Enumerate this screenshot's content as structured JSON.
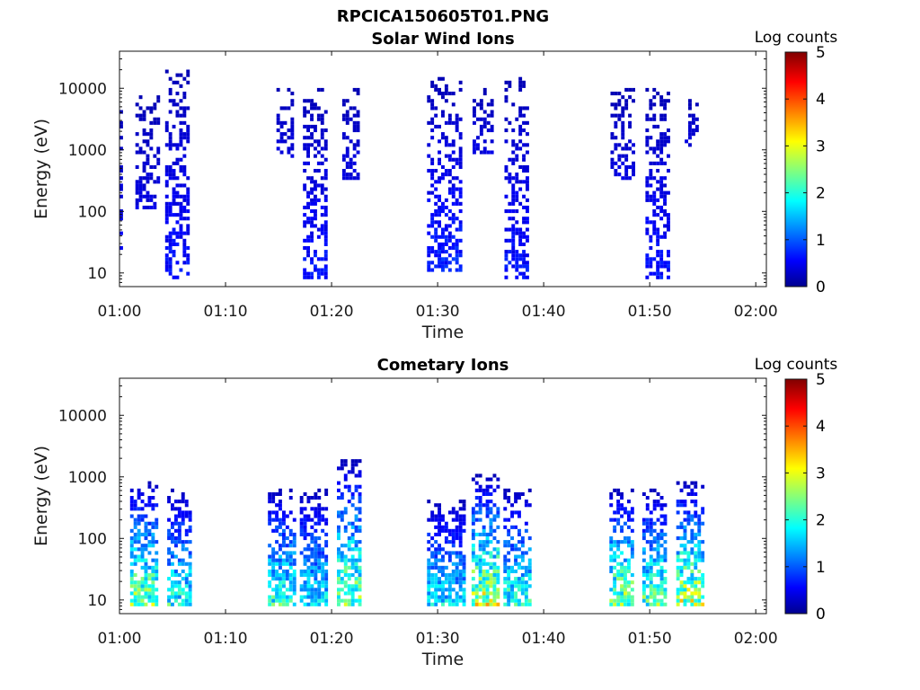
{
  "figure_title": "RPCICA150605T01.PNG",
  "chart_data": [
    {
      "type": "heatmap",
      "title": "Solar Wind Ions",
      "xlabel": "Time",
      "ylabel": "Energy (eV)",
      "x_ticks": [
        "01:00",
        "01:10",
        "01:20",
        "01:30",
        "01:40",
        "01:50",
        "02:00"
      ],
      "x_range_minutes": [
        0,
        61
      ],
      "y_ticks": [
        10,
        100,
        1000,
        10000
      ],
      "y_tick_labels": [
        "10",
        "100",
        "1000",
        "10000"
      ],
      "y_range": [
        6,
        40000
      ],
      "y_scale": "log",
      "colorbar": {
        "label": "Log counts",
        "ticks": [
          "0",
          "1",
          "2",
          "3",
          "4",
          "5"
        ],
        "range": [
          0,
          5
        ],
        "colormap": "jet"
      },
      "grid": false,
      "bursts": [
        {
          "t_min": 0.0,
          "t_max": 0.3,
          "e_min": 20,
          "e_max": 5000,
          "peak_log_counts": 0.4
        },
        {
          "t_min": 1.5,
          "t_max": 3.5,
          "e_min": 100,
          "e_max": 7000,
          "peak_log_counts": 0.3
        },
        {
          "t_min": 4.3,
          "t_max": 6.5,
          "e_min": 7,
          "e_max": 20000,
          "peak_log_counts": 0.6
        },
        {
          "t_min": 14.8,
          "t_max": 16.3,
          "e_min": 700,
          "e_max": 10000,
          "peak_log_counts": 0.3
        },
        {
          "t_min": 17.3,
          "t_max": 19.5,
          "e_min": 7,
          "e_max": 10000,
          "peak_log_counts": 0.6
        },
        {
          "t_min": 21.0,
          "t_max": 22.6,
          "e_min": 300,
          "e_max": 9000,
          "peak_log_counts": 0.3
        },
        {
          "t_min": 29.0,
          "t_max": 32.0,
          "e_min": 10,
          "e_max": 15000,
          "peak_log_counts": 0.7
        },
        {
          "t_min": 33.3,
          "t_max": 35.0,
          "e_min": 800,
          "e_max": 9000,
          "peak_log_counts": 0.3
        },
        {
          "t_min": 36.3,
          "t_max": 38.3,
          "e_min": 7,
          "e_max": 15000,
          "peak_log_counts": 0.6
        },
        {
          "t_min": 46.3,
          "t_max": 48.6,
          "e_min": 300,
          "e_max": 9000,
          "peak_log_counts": 0.3
        },
        {
          "t_min": 49.6,
          "t_max": 51.6,
          "e_min": 7,
          "e_max": 9000,
          "peak_log_counts": 0.6
        },
        {
          "t_min": 53.3,
          "t_max": 54.6,
          "e_min": 1000,
          "e_max": 6000,
          "peak_log_counts": 0.3
        }
      ]
    },
    {
      "type": "heatmap",
      "title": "Cometary Ions",
      "xlabel": "Time",
      "ylabel": "Energy (eV)",
      "x_ticks": [
        "01:00",
        "01:10",
        "01:20",
        "01:30",
        "01:40",
        "01:50",
        "02:00"
      ],
      "x_range_minutes": [
        0,
        61
      ],
      "y_ticks": [
        10,
        100,
        1000,
        10000
      ],
      "y_tick_labels": [
        "10",
        "100",
        "1000",
        "10000"
      ],
      "y_range": [
        6,
        40000
      ],
      "y_scale": "log",
      "colorbar": {
        "label": "Log counts",
        "ticks": [
          "0",
          "1",
          "2",
          "3",
          "4",
          "5"
        ],
        "range": [
          0,
          5
        ],
        "colormap": "jet"
      },
      "grid": false,
      "bursts": [
        {
          "t_min": 1.0,
          "t_max": 3.5,
          "e_min": 7,
          "e_max": 800,
          "peak_log_counts": 3.0
        },
        {
          "t_min": 4.5,
          "t_max": 6.7,
          "e_min": 7,
          "e_max": 600,
          "peak_log_counts": 2.3
        },
        {
          "t_min": 14.0,
          "t_max": 16.5,
          "e_min": 7,
          "e_max": 600,
          "peak_log_counts": 2.4
        },
        {
          "t_min": 17.0,
          "t_max": 19.5,
          "e_min": 7,
          "e_max": 600,
          "peak_log_counts": 2.0
        },
        {
          "t_min": 20.5,
          "t_max": 22.7,
          "e_min": 7,
          "e_max": 1800,
          "peak_log_counts": 3.0
        },
        {
          "t_min": 29.0,
          "t_max": 32.5,
          "e_min": 7,
          "e_max": 400,
          "peak_log_counts": 2.0
        },
        {
          "t_min": 33.2,
          "t_max": 35.6,
          "e_min": 7,
          "e_max": 1000,
          "peak_log_counts": 3.4
        },
        {
          "t_min": 36.2,
          "t_max": 38.6,
          "e_min": 7,
          "e_max": 600,
          "peak_log_counts": 2.4
        },
        {
          "t_min": 46.2,
          "t_max": 48.3,
          "e_min": 7,
          "e_max": 600,
          "peak_log_counts": 3.0
        },
        {
          "t_min": 49.3,
          "t_max": 51.3,
          "e_min": 7,
          "e_max": 600,
          "peak_log_counts": 2.7
        },
        {
          "t_min": 52.5,
          "t_max": 55.0,
          "e_min": 7,
          "e_max": 800,
          "peak_log_counts": 3.3
        }
      ]
    }
  ]
}
